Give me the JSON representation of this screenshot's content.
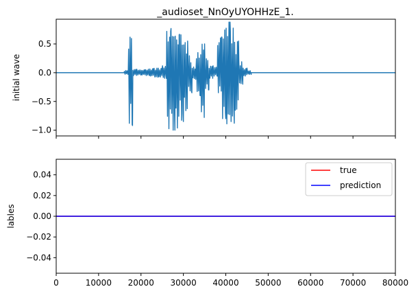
{
  "chart_data": [
    {
      "type": "line",
      "title": "_audioset_NnOyUYOHHzE_1.",
      "xlabel": "",
      "ylabel": "initial wave",
      "xlim": [
        0,
        80000
      ],
      "ylim": [
        -1.1,
        0.93
      ],
      "yticks": [
        -1.0,
        -0.5,
        0.0,
        0.5
      ],
      "ytick_labels": [
        "−1.0",
        "−0.5",
        "0.0",
        "0.5"
      ],
      "xticks": [
        0,
        10000,
        20000,
        30000,
        40000,
        50000,
        60000,
        70000,
        80000
      ],
      "xtick_labels_visible": false,
      "grid": false,
      "series": [
        {
          "color": "#1f77b4",
          "envelope_step": 1000,
          "x_start": 16000,
          "min": [
            -0.03,
            -0.92,
            -0.05,
            -0.04,
            -0.04,
            -0.05,
            -0.06,
            -0.08,
            -0.08,
            -0.1,
            -0.98,
            -1.0,
            -0.97,
            -0.85,
            -0.7,
            -0.35,
            -0.12,
            -0.4,
            -0.78,
            -0.3,
            -0.1,
            -0.06,
            -0.35,
            -0.8,
            -0.9,
            -0.88,
            -0.7,
            -0.2,
            -0.06,
            -0.03
          ],
          "max": [
            0.04,
            0.66,
            0.06,
            0.05,
            0.05,
            0.06,
            0.07,
            0.08,
            0.08,
            0.12,
            0.72,
            0.78,
            0.66,
            0.72,
            0.55,
            0.3,
            0.1,
            0.35,
            0.5,
            0.25,
            0.12,
            0.1,
            0.62,
            0.75,
            0.88,
            0.78,
            0.55,
            0.2,
            0.08,
            0.04
          ]
        }
      ]
    },
    {
      "type": "line",
      "title": "",
      "xlabel": "",
      "ylabel": "lables",
      "xlim": [
        0,
        80000
      ],
      "ylim": [
        -0.055,
        0.055
      ],
      "yticks": [
        -0.04,
        -0.02,
        0.0,
        0.02,
        0.04
      ],
      "ytick_labels": [
        "−0.04",
        "−0.02",
        "0.00",
        "0.02",
        "0.04"
      ],
      "xticks": [
        0,
        10000,
        20000,
        30000,
        40000,
        50000,
        60000,
        70000,
        80000
      ],
      "xtick_labels": [
        "0",
        "10000",
        "20000",
        "30000",
        "40000",
        "50000",
        "60000",
        "70000",
        "80000"
      ],
      "grid": false,
      "legend_position": "top-right",
      "series": [
        {
          "name": "true",
          "color": "#ff0000",
          "x": [
            0,
            80000
          ],
          "y": [
            0,
            0
          ]
        },
        {
          "name": "prediction",
          "color": "#0000ff",
          "x": [
            0,
            80000
          ],
          "y": [
            0,
            0
          ]
        }
      ]
    }
  ]
}
